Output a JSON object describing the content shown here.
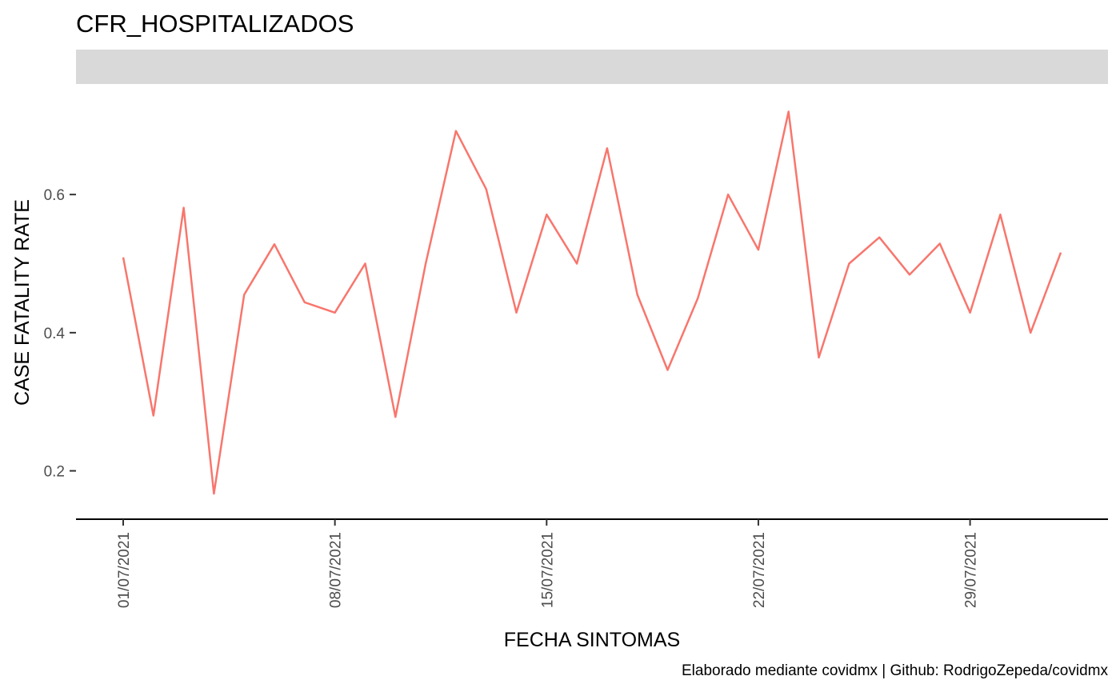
{
  "chart_data": {
    "type": "line",
    "title": "CFR_HOSPITALIZADOS",
    "xlabel": "FECHA SINTOMAS",
    "ylabel": "CASE FATALITY RATE",
    "caption": "Elaborado mediante covidmx | Github: RodrigoZepeda/covidmx",
    "x": [
      "01/07/2021",
      "02/07/2021",
      "03/07/2021",
      "04/07/2021",
      "05/07/2021",
      "06/07/2021",
      "07/07/2021",
      "08/07/2021",
      "09/07/2021",
      "10/07/2021",
      "11/07/2021",
      "12/07/2021",
      "13/07/2021",
      "14/07/2021",
      "15/07/2021",
      "16/07/2021",
      "17/07/2021",
      "18/07/2021",
      "19/07/2021",
      "20/07/2021",
      "21/07/2021",
      "22/07/2021",
      "23/07/2021",
      "24/07/2021",
      "25/07/2021",
      "26/07/2021",
      "27/07/2021",
      "28/07/2021",
      "29/07/2021",
      "30/07/2021",
      "31/07/2021",
      "01/08/2021"
    ],
    "series": [
      {
        "color": "#F8766D",
        "values": [
          0.509,
          0.28,
          0.581,
          0.167,
          0.455,
          0.528,
          0.444,
          0.429,
          0.5,
          0.278,
          0.5,
          0.692,
          0.608,
          0.429,
          0.571,
          0.5,
          0.667,
          0.455,
          0.346,
          0.45,
          0.6,
          0.52,
          0.72,
          0.364,
          0.5,
          0.538,
          0.484,
          0.529,
          0.429,
          0.571,
          0.4,
          0.516
        ]
      }
    ],
    "x_ticks": [
      "01/07/2021",
      "08/07/2021",
      "15/07/2021",
      "22/07/2021",
      "29/07/2021"
    ],
    "y_ticks": [
      0.2,
      0.4,
      0.6
    ],
    "y_tick_labels": [
      "0.2",
      "0.4",
      "0.6"
    ],
    "ylim": [
      0.13,
      0.76
    ],
    "grid": false,
    "facet_strip": ""
  }
}
